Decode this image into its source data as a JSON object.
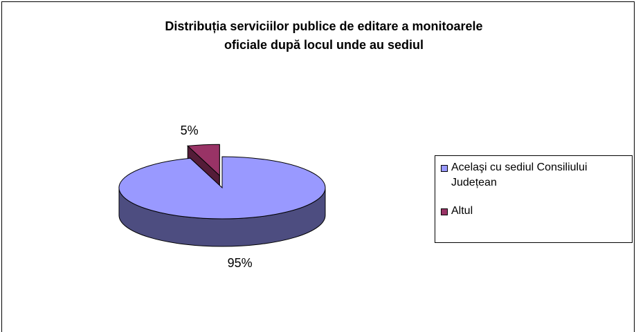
{
  "chart_data": {
    "type": "pie3d",
    "title": [
      "Distribuția  serviciilor publice de editare a monitoarele",
      "oficiale după locul unde au sediul"
    ],
    "categories": [
      "Acelaşi cu sediul Consiliului Județean",
      "Altul"
    ],
    "values": [
      95,
      5
    ],
    "value_labels": [
      "95%",
      "5%"
    ],
    "colors": [
      "#9999ff",
      "#993366"
    ],
    "legend": "right"
  }
}
